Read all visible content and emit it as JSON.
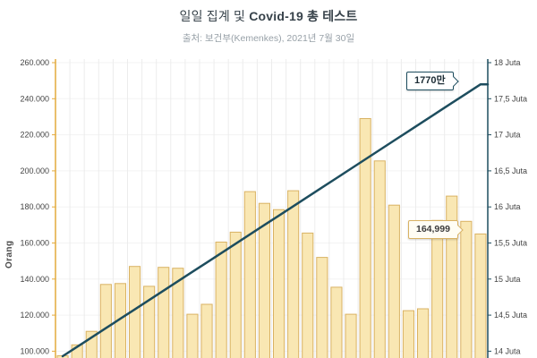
{
  "header": {
    "title_regular": "일일 집계 및 ",
    "title_bold": "Covid-19 총 테스트",
    "subtitle": "출처: 보건부(Kemenkes), 2021년 7월 30일"
  },
  "colors": {
    "bar_fill": "#f9e7b3",
    "bar_border": "#d9b263",
    "line": "#1d4d5e",
    "axis_left": "#e3aa3c",
    "axis_right": "#1d4d5e",
    "grid_vertical": "#ececec",
    "grid_horizontal": "#f3f3f3",
    "tick_text": "#444444"
  },
  "chart_data": {
    "type": "bar+line",
    "title": "일일 집계 및 Covid-19 총 테스트",
    "source": "출처: 보건부(Kemenkes), 2021년 7월 30일",
    "xlabel": "",
    "ylabel_left": "Orang",
    "ylabel_right": "Juta",
    "grid": "vertical+horizontal",
    "legend": "none",
    "left_axis": {
      "tick_labels": [
        "260.000",
        "240.000",
        "220.000",
        "200.000",
        "180.000",
        "160.000",
        "140.000",
        "120.000",
        "100.000"
      ],
      "tick_values": [
        260000,
        240000,
        220000,
        200000,
        180000,
        160000,
        140000,
        120000,
        100000
      ]
    },
    "right_axis": {
      "tick_labels": [
        "18 Juta",
        "17,5 Juta",
        "17 Juta",
        "16,5 Juta",
        "16 Juta",
        "15,5 Juta",
        "15 Juta",
        "14,5 Juta",
        "14 Juta"
      ],
      "tick_values": [
        18,
        17.5,
        17,
        16.5,
        16,
        15.5,
        15,
        14.5,
        14
      ]
    },
    "series": [
      {
        "name": "daily_tests_orang",
        "type": "bar",
        "values": [
          97500,
          103500,
          111000,
          137000,
          137500,
          147000,
          136000,
          146500,
          146000,
          120500,
          126000,
          160500,
          166000,
          188500,
          182000,
          178500,
          189000,
          165500,
          152000,
          135500,
          120500,
          229000,
          205500,
          181000,
          122500,
          123500,
          172500,
          186000,
          172000,
          164999
        ]
      },
      {
        "name": "total_tests_juta",
        "type": "line",
        "values": [
          13.93,
          14.06,
          14.19,
          14.32,
          14.45,
          14.58,
          14.71,
          14.84,
          14.97,
          15.1,
          15.23,
          15.36,
          15.49,
          15.62,
          15.75,
          15.88,
          16.01,
          16.14,
          16.27,
          16.4,
          16.53,
          16.66,
          16.79,
          16.92,
          17.05,
          17.18,
          17.31,
          17.44,
          17.57,
          17.7
        ]
      }
    ],
    "annotations": [
      {
        "text": "1770만"
      },
      {
        "text": "164,999"
      }
    ]
  }
}
